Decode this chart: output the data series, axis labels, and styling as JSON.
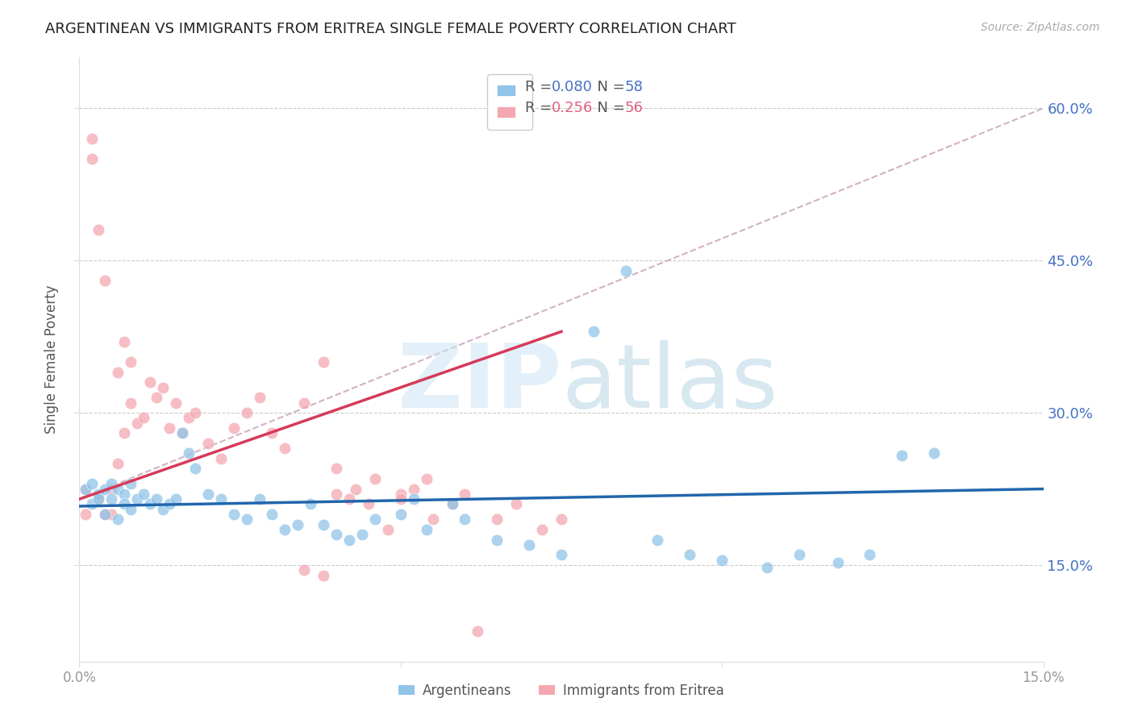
{
  "title": "ARGENTINEAN VS IMMIGRANTS FROM ERITREA SINGLE FEMALE POVERTY CORRELATION CHART",
  "source": "Source: ZipAtlas.com",
  "ylabel": "Single Female Poverty",
  "yaxis_labels": [
    "60.0%",
    "45.0%",
    "30.0%",
    "15.0%"
  ],
  "yaxis_values": [
    0.6,
    0.45,
    0.3,
    0.15
  ],
  "xlim": [
    0.0,
    0.15
  ],
  "ylim": [
    0.055,
    0.65
  ],
  "legend_blue_r": "0.080",
  "legend_blue_n": "58",
  "legend_pink_r": "0.256",
  "legend_pink_n": "56",
  "blue_scatter_color": "#90c4e8",
  "pink_scatter_color": "#f4a7b0",
  "blue_line_color": "#2166ac",
  "pink_line_color": "#d63a5a",
  "dashed_line_color": "#ccaabb",
  "blue_text_color": "#4472c4",
  "pink_text_color": "#e06080",
  "blue_x": [
    0.001,
    0.002,
    0.002,
    0.003,
    0.003,
    0.004,
    0.004,
    0.005,
    0.005,
    0.006,
    0.006,
    0.007,
    0.007,
    0.008,
    0.008,
    0.009,
    0.01,
    0.011,
    0.012,
    0.013,
    0.014,
    0.015,
    0.016,
    0.017,
    0.018,
    0.02,
    0.022,
    0.024,
    0.026,
    0.028,
    0.03,
    0.032,
    0.034,
    0.036,
    0.038,
    0.04,
    0.042,
    0.044,
    0.046,
    0.05,
    0.052,
    0.054,
    0.058,
    0.06,
    0.065,
    0.07,
    0.075,
    0.08,
    0.085,
    0.09,
    0.095,
    0.1,
    0.107,
    0.112,
    0.118,
    0.123,
    0.128,
    0.133
  ],
  "blue_y": [
    0.225,
    0.23,
    0.21,
    0.22,
    0.215,
    0.225,
    0.2,
    0.23,
    0.215,
    0.225,
    0.195,
    0.22,
    0.21,
    0.23,
    0.205,
    0.215,
    0.22,
    0.21,
    0.215,
    0.205,
    0.21,
    0.215,
    0.28,
    0.26,
    0.245,
    0.22,
    0.215,
    0.2,
    0.195,
    0.215,
    0.2,
    0.185,
    0.19,
    0.21,
    0.19,
    0.18,
    0.175,
    0.18,
    0.195,
    0.2,
    0.215,
    0.185,
    0.21,
    0.195,
    0.175,
    0.17,
    0.16,
    0.38,
    0.44,
    0.175,
    0.16,
    0.155,
    0.148,
    0.16,
    0.152,
    0.16,
    0.258,
    0.26
  ],
  "pink_x": [
    0.001,
    0.001,
    0.002,
    0.002,
    0.003,
    0.003,
    0.004,
    0.004,
    0.005,
    0.005,
    0.006,
    0.006,
    0.007,
    0.007,
    0.008,
    0.008,
    0.009,
    0.01,
    0.011,
    0.012,
    0.013,
    0.014,
    0.015,
    0.016,
    0.017,
    0.018,
    0.02,
    0.022,
    0.024,
    0.026,
    0.028,
    0.03,
    0.032,
    0.035,
    0.038,
    0.04,
    0.043,
    0.046,
    0.05,
    0.054,
    0.058,
    0.06,
    0.062,
    0.065,
    0.068,
    0.072,
    0.075,
    0.05,
    0.052,
    0.055,
    0.04,
    0.042,
    0.045,
    0.048,
    0.035,
    0.038
  ],
  "pink_y": [
    0.225,
    0.2,
    0.57,
    0.55,
    0.215,
    0.48,
    0.2,
    0.43,
    0.225,
    0.2,
    0.25,
    0.34,
    0.28,
    0.37,
    0.31,
    0.35,
    0.29,
    0.295,
    0.33,
    0.315,
    0.325,
    0.285,
    0.31,
    0.28,
    0.295,
    0.3,
    0.27,
    0.255,
    0.285,
    0.3,
    0.315,
    0.28,
    0.265,
    0.31,
    0.35,
    0.245,
    0.225,
    0.235,
    0.22,
    0.235,
    0.21,
    0.22,
    0.085,
    0.195,
    0.21,
    0.185,
    0.195,
    0.215,
    0.225,
    0.195,
    0.22,
    0.215,
    0.21,
    0.185,
    0.145,
    0.14
  ],
  "blue_line_x": [
    0.0,
    0.15
  ],
  "blue_line_y": [
    0.208,
    0.225
  ],
  "pink_line_x": [
    0.0,
    0.075
  ],
  "pink_line_y": [
    0.215,
    0.38
  ],
  "dash_line_x": [
    0.0,
    0.15
  ],
  "dash_line_y": [
    0.215,
    0.6
  ]
}
